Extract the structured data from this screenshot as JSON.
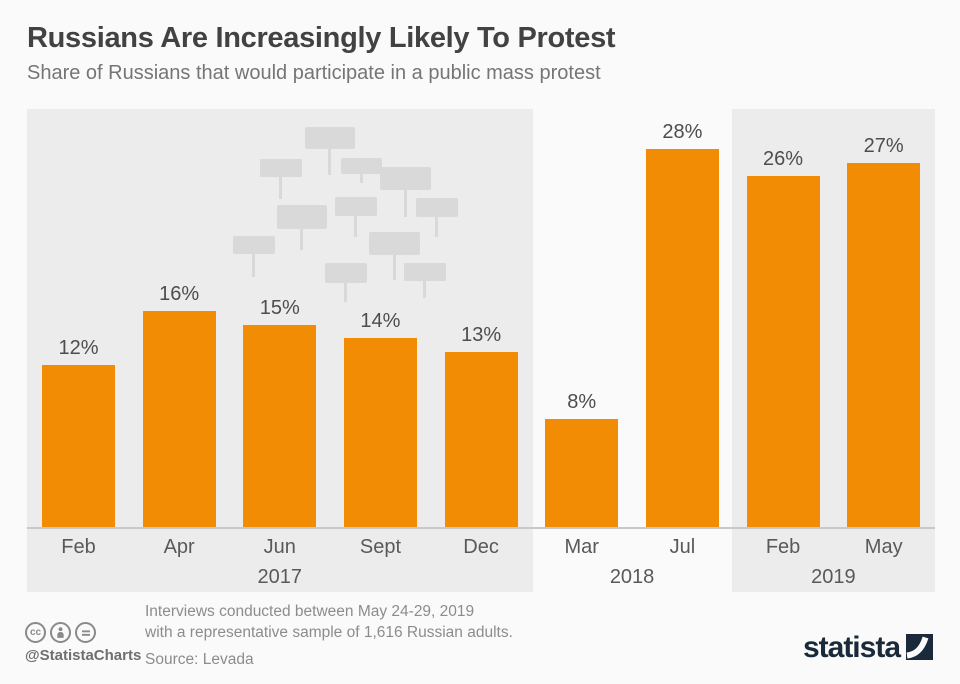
{
  "header": {
    "title": "Russians Are Increasingly Likely To Protest",
    "subtitle": "Share of Russians that would participate in a public mass protest"
  },
  "chart_data": {
    "type": "bar",
    "title": "Russians Are Increasingly Likely To Protest",
    "subtitle": "Share of Russians that would participate in a public mass protest",
    "unit": "%",
    "ylim": [
      0,
      30
    ],
    "grid": false,
    "legend": "none",
    "bar_color": "#f28c05",
    "groups": [
      {
        "year": "2017",
        "panel": true,
        "categories": [
          "Feb",
          "Apr",
          "Jun",
          "Sept",
          "Dec"
        ],
        "values": [
          12,
          16,
          15,
          14,
          13
        ],
        "labels": [
          "12%",
          "16%",
          "15%",
          "14%",
          "13%"
        ]
      },
      {
        "year": "2018",
        "panel": false,
        "categories": [
          "Mar",
          "Jul"
        ],
        "values": [
          8,
          28
        ],
        "labels": [
          "8%",
          "28%"
        ]
      },
      {
        "year": "2019",
        "panel": true,
        "categories": [
          "Feb",
          "May"
        ],
        "values": [
          26,
          27
        ],
        "labels": [
          "26%",
          "27%"
        ]
      }
    ]
  },
  "footer": {
    "handle": "@StatistaCharts",
    "license_icons": [
      "cc-icon",
      "attribution-icon",
      "nd-icon"
    ],
    "note_line1": "Interviews conducted between May 24-29, 2019",
    "note_line2": "with a representative sample of 1,616 Russian adults.",
    "source": "Source: Levada",
    "brand": "statista"
  },
  "colors": {
    "bar": "#f28c05",
    "panel": "#ececec",
    "placard": "#d9d9d9",
    "background": "#fafafa",
    "brand_navy": "#1b2a3b"
  }
}
